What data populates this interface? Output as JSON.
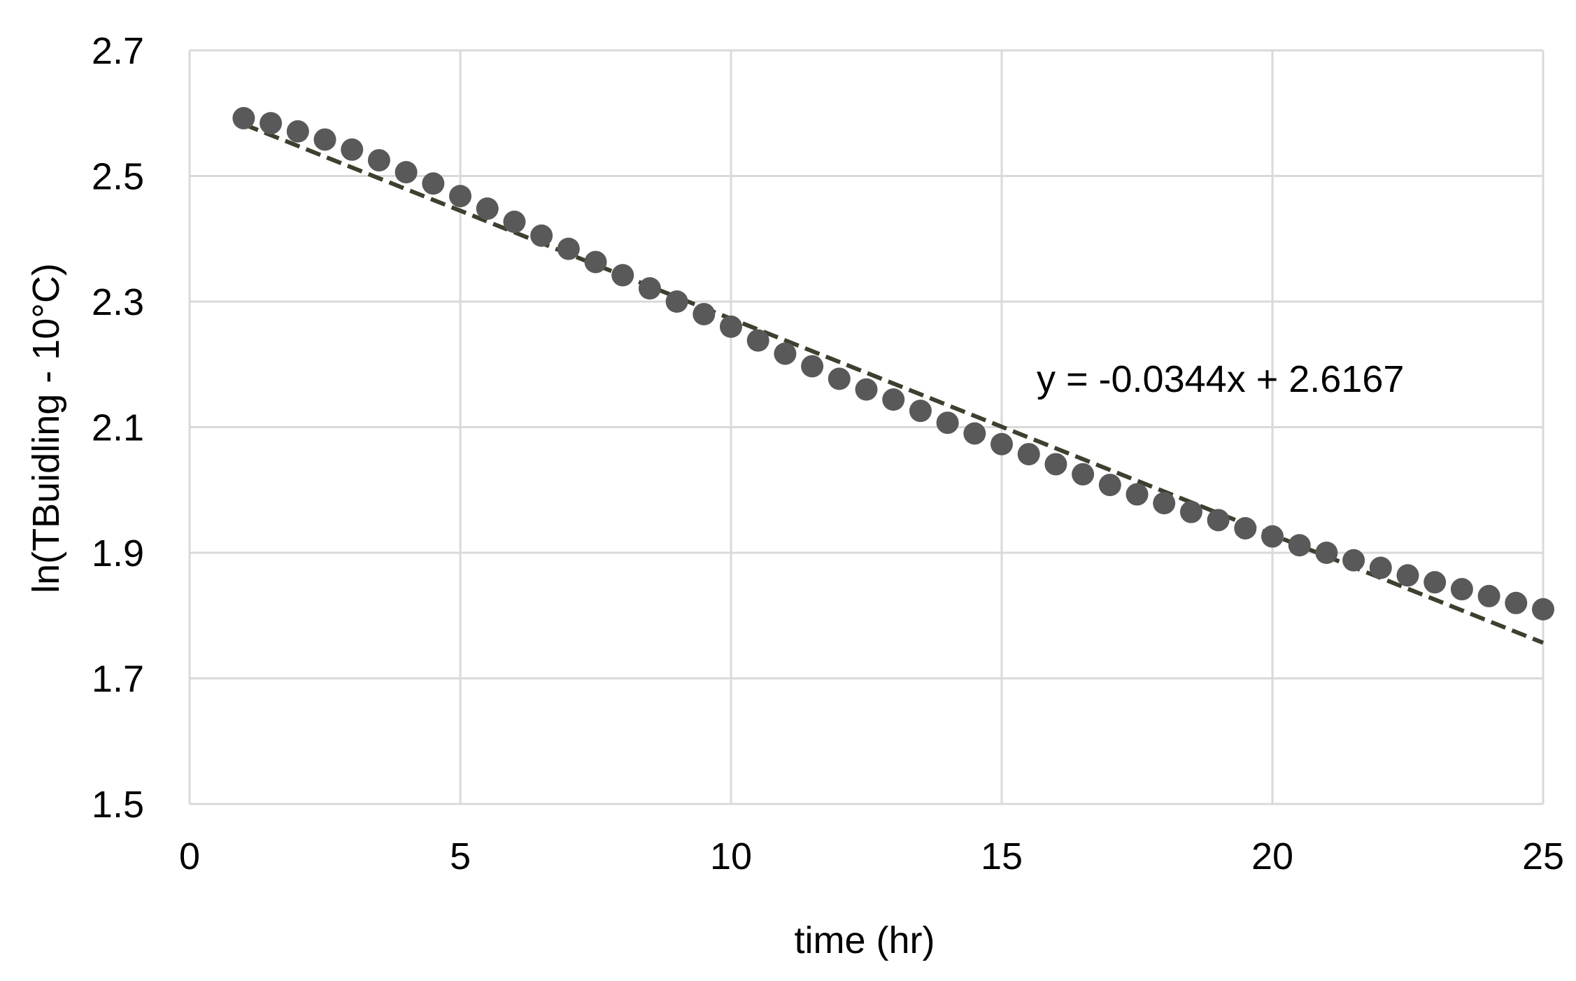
{
  "chart_data": {
    "type": "scatter",
    "title": "",
    "xlabel": "time (hr)",
    "ylabel": "ln(TBuidling - 10°C)",
    "xlim": [
      0,
      25
    ],
    "ylim": [
      1.5,
      2.7
    ],
    "xticks": [
      0,
      5,
      10,
      15,
      20,
      25
    ],
    "yticks": [
      1.5,
      1.7,
      1.9,
      2.1,
      2.3,
      2.5,
      2.7
    ],
    "xtick_labels": [
      "0",
      "5",
      "10",
      "15",
      "20",
      "25"
    ],
    "ytick_labels": [
      "1.5",
      "1.7",
      "1.9",
      "2.1",
      "2.3",
      "2.5",
      "2.7"
    ],
    "grid": true,
    "legend": "none",
    "colors": {
      "marker": "#595959",
      "trendline": "#3f3f2f",
      "grid": "#d9d9d9"
    },
    "series": [
      {
        "x": [
          1,
          1.5,
          2,
          2.5,
          3,
          3.5,
          4,
          4.5,
          5,
          5.5,
          6,
          6.5,
          7,
          7.5,
          8,
          8.5,
          9,
          9.5,
          10,
          10.5,
          11,
          11.5,
          12,
          12.5,
          13,
          13.5,
          14,
          14.5,
          15,
          15.5,
          16,
          16.5,
          17,
          17.5,
          18,
          18.5,
          19,
          19.5,
          20,
          20.5,
          21,
          21.5,
          22,
          22.5,
          23,
          23.5,
          24,
          24.5,
          25
        ],
        "y": [
          2.592,
          2.584,
          2.571,
          2.558,
          2.542,
          2.525,
          2.506,
          2.488,
          2.468,
          2.448,
          2.427,
          2.405,
          2.384,
          2.363,
          2.342,
          2.321,
          2.3,
          2.28,
          2.26,
          2.238,
          2.217,
          2.197,
          2.177,
          2.16,
          2.144,
          2.126,
          2.107,
          2.09,
          2.073,
          2.057,
          2.041,
          2.025,
          2.008,
          1.993,
          1.979,
          1.965,
          1.952,
          1.939,
          1.926,
          1.912,
          1.9,
          1.888,
          1.876,
          1.864,
          1.853,
          1.842,
          1.831,
          1.82,
          1.81
        ]
      }
    ],
    "trendline": {
      "type": "linear",
      "slope": -0.0344,
      "intercept": 2.6167,
      "x_range": [
        1,
        25
      ],
      "style": "dashed",
      "equation": "y = -0.0344x + 2.6167"
    }
  }
}
